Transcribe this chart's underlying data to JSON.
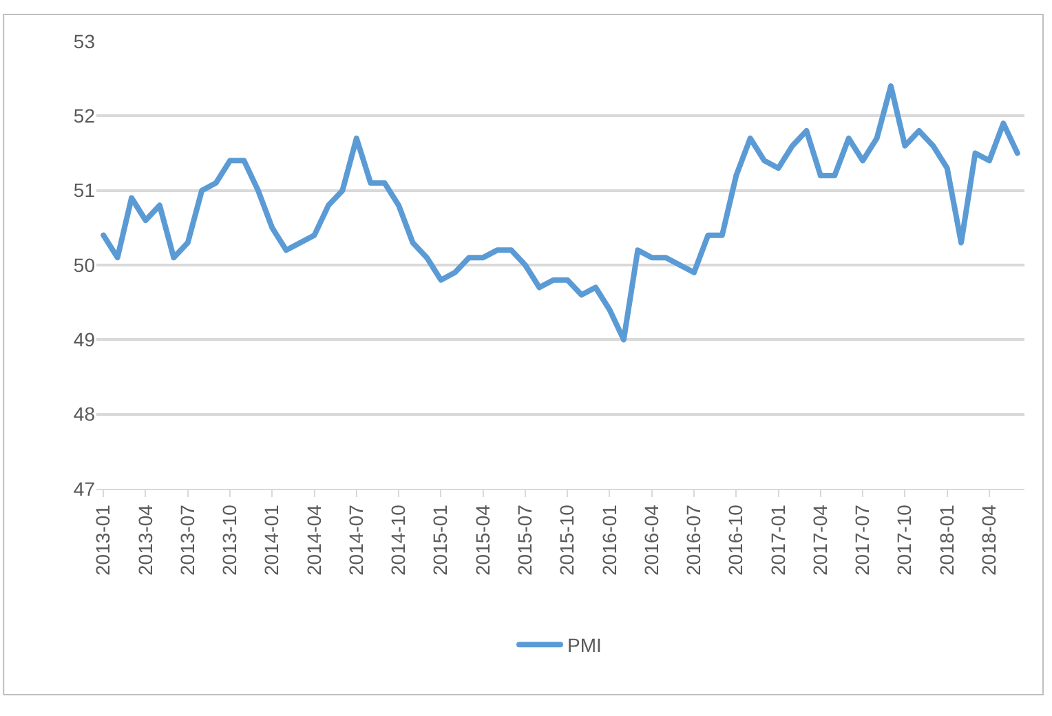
{
  "chart_data": {
    "type": "line",
    "categories": [
      "2013-01",
      null,
      null,
      "2013-04",
      null,
      null,
      "2013-07",
      null,
      null,
      "2013-10",
      null,
      null,
      "2014-01",
      null,
      null,
      "2014-04",
      null,
      null,
      "2014-07",
      null,
      null,
      "2014-10",
      null,
      null,
      "2015-01",
      null,
      null,
      "2015-04",
      null,
      null,
      "2015-07",
      null,
      null,
      "2015-10",
      null,
      null,
      "2016-01",
      null,
      null,
      "2016-04",
      null,
      null,
      "2016-07",
      null,
      null,
      "2016-10",
      null,
      null,
      "2017-01",
      null,
      null,
      "2017-04",
      null,
      null,
      "2017-07",
      null,
      null,
      "2017-10",
      null,
      null,
      "2018-01",
      null,
      null,
      "2018-04",
      null,
      null
    ],
    "series": [
      {
        "name": "PMI",
        "color": "#5b9bd5",
        "values": [
          50.4,
          50.1,
          50.9,
          50.6,
          50.8,
          50.1,
          50.3,
          51.0,
          51.1,
          51.4,
          51.4,
          51.0,
          50.5,
          50.2,
          50.3,
          50.4,
          50.8,
          51.0,
          51.7,
          51.1,
          51.1,
          50.8,
          50.3,
          50.1,
          49.8,
          49.9,
          50.1,
          50.1,
          50.2,
          50.2,
          50.0,
          49.7,
          49.8,
          49.8,
          49.6,
          49.7,
          49.4,
          49.0,
          50.2,
          50.1,
          50.1,
          50.0,
          49.9,
          50.4,
          50.4,
          51.2,
          51.7,
          51.4,
          51.3,
          51.6,
          51.8,
          51.2,
          51.2,
          51.7,
          51.4,
          51.7,
          52.4,
          51.6,
          51.8,
          51.6,
          51.3,
          50.3,
          51.5,
          51.4,
          51.9,
          51.5
        ]
      }
    ],
    "ylim": [
      47,
      53
    ],
    "yticks": [
      47,
      48,
      49,
      50,
      51,
      52,
      53
    ],
    "grid": "y",
    "legend": "bottom",
    "marker": "none",
    "line_style": "solid"
  }
}
